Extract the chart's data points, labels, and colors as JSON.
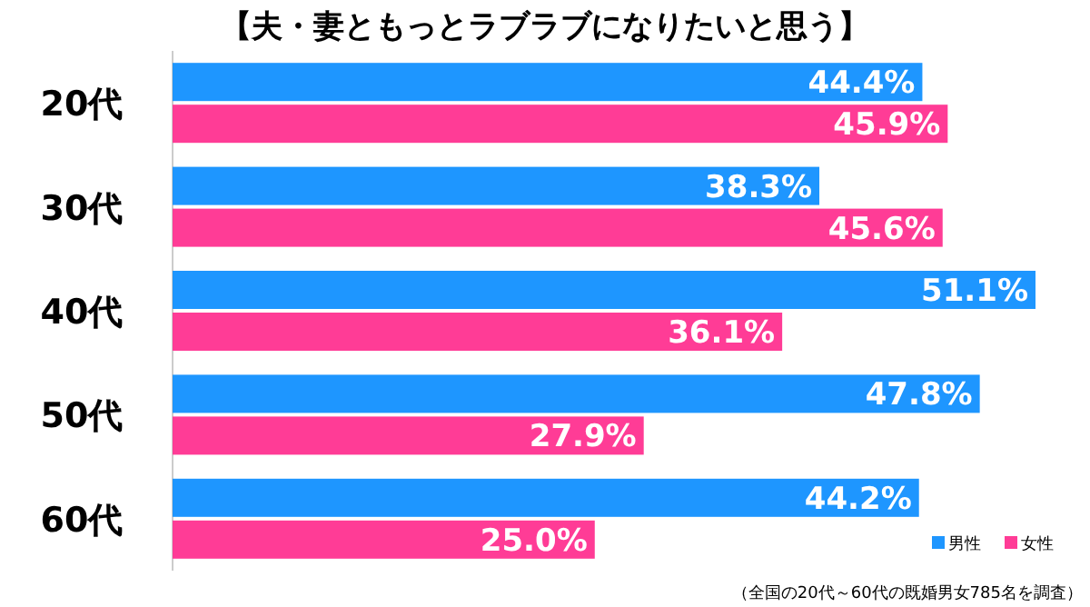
{
  "chart_data": {
    "type": "bar",
    "orientation": "horizontal",
    "title": "【夫・妻ともっとラブラブになりたいと思う】",
    "categories": [
      "20代",
      "30代",
      "40代",
      "50代",
      "60代"
    ],
    "series": [
      {
        "name": "男性",
        "color": "#1e96ff",
        "values": [
          44.4,
          38.3,
          51.1,
          47.8,
          44.2
        ],
        "value_labels": [
          "44.4%",
          "38.3%",
          "51.1%",
          "47.8%",
          "44.2%"
        ]
      },
      {
        "name": "女性",
        "color": "#ff3c96",
        "values": [
          45.9,
          45.6,
          36.1,
          27.9,
          25.0
        ],
        "value_labels": [
          "45.9%",
          "45.6%",
          "36.1%",
          "27.9%",
          "25.0%"
        ]
      }
    ],
    "legend": "bottom right",
    "annotations": [
      "（全国の20代～60代の既婚男女785名を調査）"
    ]
  }
}
